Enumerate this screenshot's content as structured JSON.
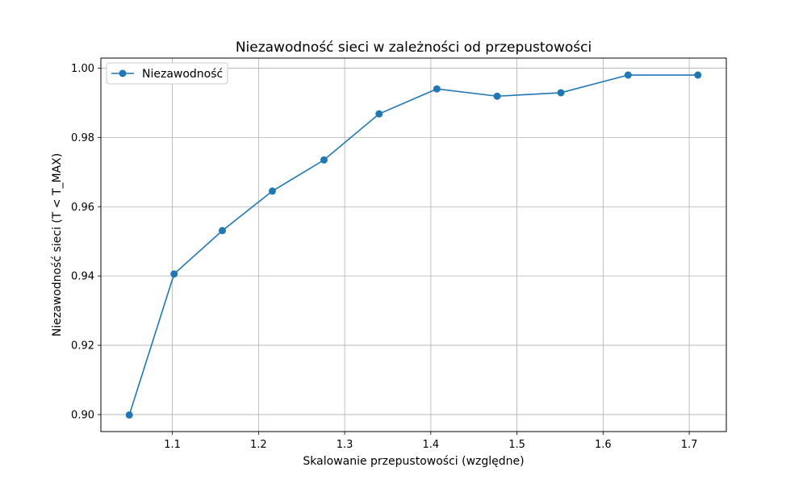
{
  "chart_data": {
    "type": "line",
    "title": "Niezawodność sieci w zależności od przepustowości",
    "xlabel": "Skalowanie przepustowości (względne)",
    "ylabel": "Niezawodność sieci (T < T_MAX)",
    "x": [
      1.05,
      1.102,
      1.158,
      1.216,
      1.276,
      1.34,
      1.407,
      1.477,
      1.551,
      1.629,
      1.71
    ],
    "series": [
      {
        "name": "Niezawodność",
        "color": "#1f77b4",
        "marker": "circle",
        "values": [
          0.8999,
          0.9406,
          0.9531,
          0.9645,
          0.9735,
          0.9868,
          0.994,
          0.9919,
          0.9929,
          0.998,
          0.998
        ]
      }
    ],
    "xlim": [
      1.017,
      1.743
    ],
    "ylim": [
      0.8951,
      1.0029
    ],
    "xticks": [
      1.1,
      1.2,
      1.3,
      1.4,
      1.5,
      1.6,
      1.7
    ],
    "xtick_labels": [
      "1.1",
      "1.2",
      "1.3",
      "1.4",
      "1.5",
      "1.6",
      "1.7"
    ],
    "yticks": [
      0.9,
      0.92,
      0.94,
      0.96,
      0.98,
      1.0
    ],
    "ytick_labels": [
      "0.90",
      "0.92",
      "0.94",
      "0.96",
      "0.98",
      "1.00"
    ],
    "grid": true,
    "legend_position": "top-left"
  }
}
